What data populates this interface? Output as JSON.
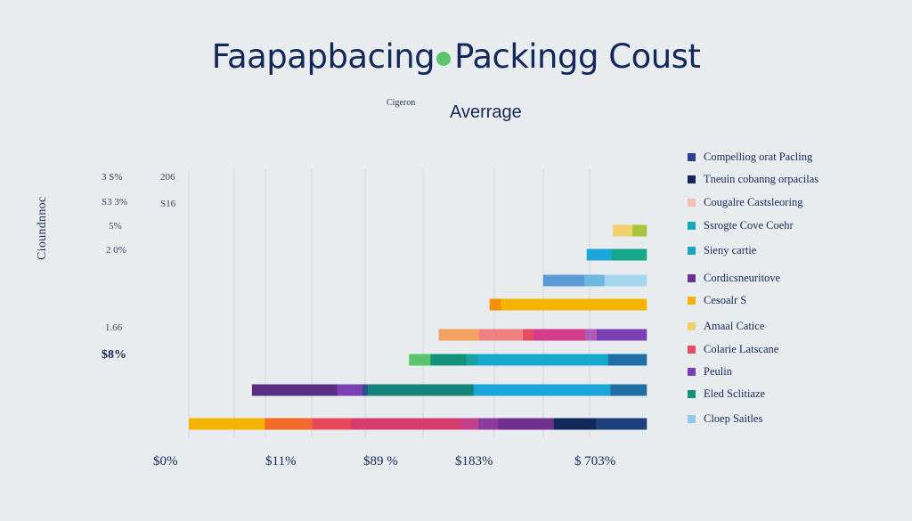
{
  "title": {
    "left": "Faapapbacing",
    "right": "Packingg Coust"
  },
  "subtitle": "Averrage",
  "small_note": "Cigeron",
  "ylabel": "Cioundnnoc",
  "y_ticks": [
    {
      "left": "3 S%",
      "right": "206"
    },
    {
      "left": "S3 3%",
      "right": "S16"
    },
    {
      "left": "5%",
      "right": ""
    },
    {
      "left": "2 0%",
      "right": ""
    },
    {
      "left": "1.66",
      "right": ""
    },
    {
      "left": "$8%",
      "right": "",
      "bold": true
    }
  ],
  "x_ticks": [
    "$0%",
    "$11%",
    "$89 %",
    "$183%",
    "$ 703%"
  ],
  "legend": [
    {
      "label": "Compelliog orat Pacling",
      "color": "#2c3f8f"
    },
    {
      "label": "Tneuin cobanng orpacilas",
      "color": "#13285a"
    },
    {
      "label": "Cougalre Castsleoring",
      "color": "#f5c0b0"
    },
    {
      "label": "Ssrogte Cove Coehr",
      "color": "#16a9bd"
    },
    {
      "label": "Sieny cartie",
      "color": "#1aa6c4"
    },
    {
      "label": "Cordicsneuritove",
      "color": "#6e2f8f"
    },
    {
      "label": "Cesoalr S",
      "color": "#f4b400"
    },
    {
      "label": "Amaal Catice",
      "color": "#f2d06b"
    },
    {
      "label": "Colarie Latscane",
      "color": "#e64b66"
    },
    {
      "label": "Peulin",
      "color": "#7a3fb0"
    },
    {
      "label": "Eled Sclitiaze",
      "color": "#12927a"
    },
    {
      "label": "Cloep Saitles",
      "color": "#8cc9ea"
    }
  ],
  "chart_data": {
    "type": "bar",
    "orientation": "horizontal",
    "stacked": true,
    "title": "Faapapbacing Packingg Coust",
    "subtitle": "Averrage",
    "ylabel": "Cioundnnoc",
    "x_tick_labels": [
      "$0%",
      "$11%",
      "$89 %",
      "$183%",
      "$ 703%"
    ],
    "xlim": [
      0,
      100
    ],
    "grid": true,
    "legend_position": "right",
    "bars": [
      {
        "segments": [
          {
            "value": 4.3,
            "color": "#f2d06b"
          },
          {
            "value": 3.1,
            "color": "#a8c23a"
          }
        ]
      },
      {
        "segments": [
          {
            "value": 5.5,
            "color": "#1aa6d8"
          },
          {
            "value": 7.6,
            "color": "#17a88a"
          }
        ]
      },
      {
        "segments": [
          {
            "value": 9.0,
            "color": "#5b9bd5"
          },
          {
            "value": 4.4,
            "color": "#6bb8e0"
          },
          {
            "value": 9.2,
            "color": "#a6d6ef"
          }
        ]
      },
      {
        "segments": [
          {
            "value": 2.5,
            "color": "#f39200"
          },
          {
            "value": 31.8,
            "color": "#f4b400"
          }
        ]
      },
      {
        "segments": [
          {
            "value": 8.8,
            "color": "#f4a261"
          },
          {
            "value": 9.6,
            "color": "#f08080"
          },
          {
            "value": 2.3,
            "color": "#e64b66"
          },
          {
            "value": 11.3,
            "color": "#d63c8c"
          },
          {
            "value": 2.5,
            "color": "#b05cb5"
          },
          {
            "value": 10.9,
            "color": "#7a3fb0"
          }
        ]
      },
      {
        "segments": [
          {
            "value": 4.7,
            "color": "#5cc46d"
          },
          {
            "value": 7.8,
            "color": "#12927a"
          },
          {
            "value": 2.5,
            "color": "#15a3a3"
          },
          {
            "value": 28.5,
            "color": "#16a9d0"
          },
          {
            "value": 8.4,
            "color": "#1d6fa5"
          }
        ]
      },
      {
        "segments": [
          {
            "value": 18.6,
            "color": "#5a2d82"
          },
          {
            "value": 5.5,
            "color": "#7a3fb0"
          },
          {
            "value": 1.2,
            "color": "#2f4d8f"
          },
          {
            "value": 23.1,
            "color": "#13857a"
          },
          {
            "value": 29.9,
            "color": "#1aa6d8"
          },
          {
            "value": 7.9,
            "color": "#1d6fa5"
          }
        ]
      },
      {
        "segments": [
          {
            "value": 16.6,
            "color": "#f4b400"
          },
          {
            "value": 10.3,
            "color": "#f26b2a"
          },
          {
            "value": 8.6,
            "color": "#e8475a"
          },
          {
            "value": 24.1,
            "color": "#d63c6e"
          },
          {
            "value": 3.7,
            "color": "#c2408a"
          },
          {
            "value": 4.3,
            "color": "#8a3a9a"
          },
          {
            "value": 12.1,
            "color": "#6e2f8f"
          },
          {
            "value": 9.2,
            "color": "#13285a"
          },
          {
            "value": 11.1,
            "color": "#1f3f7a"
          }
        ]
      }
    ]
  }
}
